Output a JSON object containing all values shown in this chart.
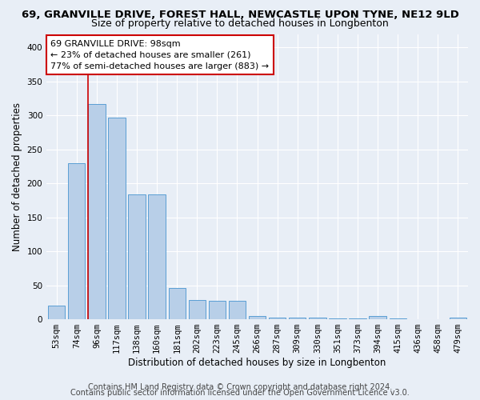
{
  "title_line1": "69, GRANVILLE DRIVE, FOREST HALL, NEWCASTLE UPON TYNE, NE12 9LD",
  "title_line2": "Size of property relative to detached houses in Longbenton",
  "xlabel": "Distribution of detached houses by size in Longbenton",
  "ylabel": "Number of detached properties",
  "categories": [
    "53sqm",
    "74sqm",
    "96sqm",
    "117sqm",
    "138sqm",
    "160sqm",
    "181sqm",
    "202sqm",
    "223sqm",
    "245sqm",
    "266sqm",
    "287sqm",
    "309sqm",
    "330sqm",
    "351sqm",
    "373sqm",
    "394sqm",
    "415sqm",
    "436sqm",
    "458sqm",
    "479sqm"
  ],
  "values": [
    20,
    230,
    317,
    297,
    184,
    184,
    46,
    28,
    27,
    27,
    5,
    3,
    3,
    2,
    1,
    1,
    5,
    1,
    0,
    0,
    2
  ],
  "bar_color": "#b8cfe8",
  "bar_edge_color": "#5a9fd4",
  "vline_x_index": 2,
  "annotation_text": "69 GRANVILLE DRIVE: 98sqm\n← 23% of detached houses are smaller (261)\n77% of semi-detached houses are larger (883) →",
  "annotation_box_color": "white",
  "annotation_border_color": "#cc0000",
  "vline_color": "#cc0000",
  "ylim": [
    0,
    420
  ],
  "yticks": [
    0,
    50,
    100,
    150,
    200,
    250,
    300,
    350,
    400
  ],
  "background_color": "#e8eef6",
  "grid_color": "white",
  "footer_line1": "Contains HM Land Registry data © Crown copyright and database right 2024.",
  "footer_line2": "Contains public sector information licensed under the Open Government Licence v3.0.",
  "title_fontsize": 9.5,
  "subtitle_fontsize": 9,
  "axis_label_fontsize": 8.5,
  "tick_fontsize": 7.5,
  "annotation_fontsize": 8,
  "footer_fontsize": 7
}
